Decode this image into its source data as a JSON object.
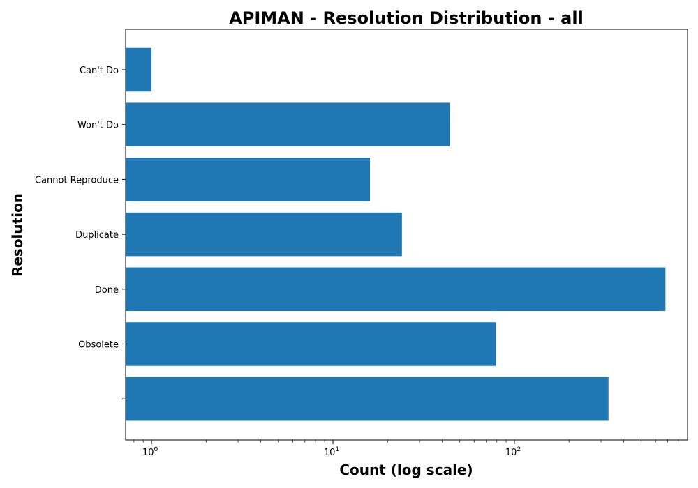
{
  "chart_data": {
    "type": "bar",
    "orientation": "horizontal",
    "title": "APIMAN - Resolution Distribution - all",
    "xlabel": "Count (log scale)",
    "ylabel": "Resolution",
    "x_scale": "log",
    "xlim": [
      0.72,
      900
    ],
    "x_ticks": [
      {
        "value": 1,
        "base": "10",
        "exp": "0"
      },
      {
        "value": 10,
        "base": "10",
        "exp": "1"
      },
      {
        "value": 100,
        "base": "10",
        "exp": "2"
      }
    ],
    "categories": [
      "Can't Do",
      "Won't Do",
      "Cannot Reproduce",
      "Duplicate",
      "Done",
      "Obsolete",
      ""
    ],
    "values": [
      1,
      44,
      16,
      24,
      680,
      79,
      330
    ],
    "bar_color": "#1f77b4",
    "grid": false
  }
}
